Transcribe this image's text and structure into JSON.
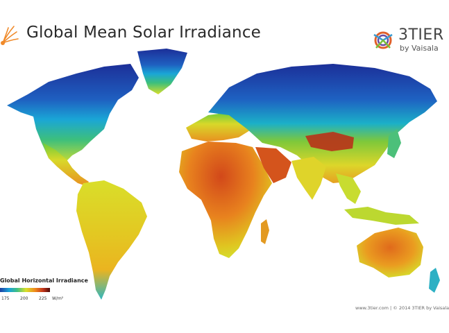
{
  "header": {
    "title": "Global Mean Solar Irradiance"
  },
  "brand": {
    "name": "3TIER",
    "subtitle": "by Vaisala"
  },
  "legend": {
    "title": "Global Horizontal Irradiance",
    "ticks": [
      "175",
      "200",
      "225"
    ],
    "unit": "W/m²",
    "colors": [
      "#1d3fa3",
      "#1aa2d8",
      "#3fbf86",
      "#d8e02a",
      "#f08a1c",
      "#c4361c",
      "#4b0b0b"
    ]
  },
  "footer": {
    "text": "www.3tier.com  |  © 2014 3TIER by Vaisala"
  },
  "map": {
    "regions": [
      "north-america",
      "greenland",
      "central-america",
      "south-america",
      "europe",
      "africa",
      "arabia",
      "asia",
      "india",
      "southeast-asia",
      "japan",
      "indonesia",
      "australia",
      "new-zealand"
    ]
  }
}
